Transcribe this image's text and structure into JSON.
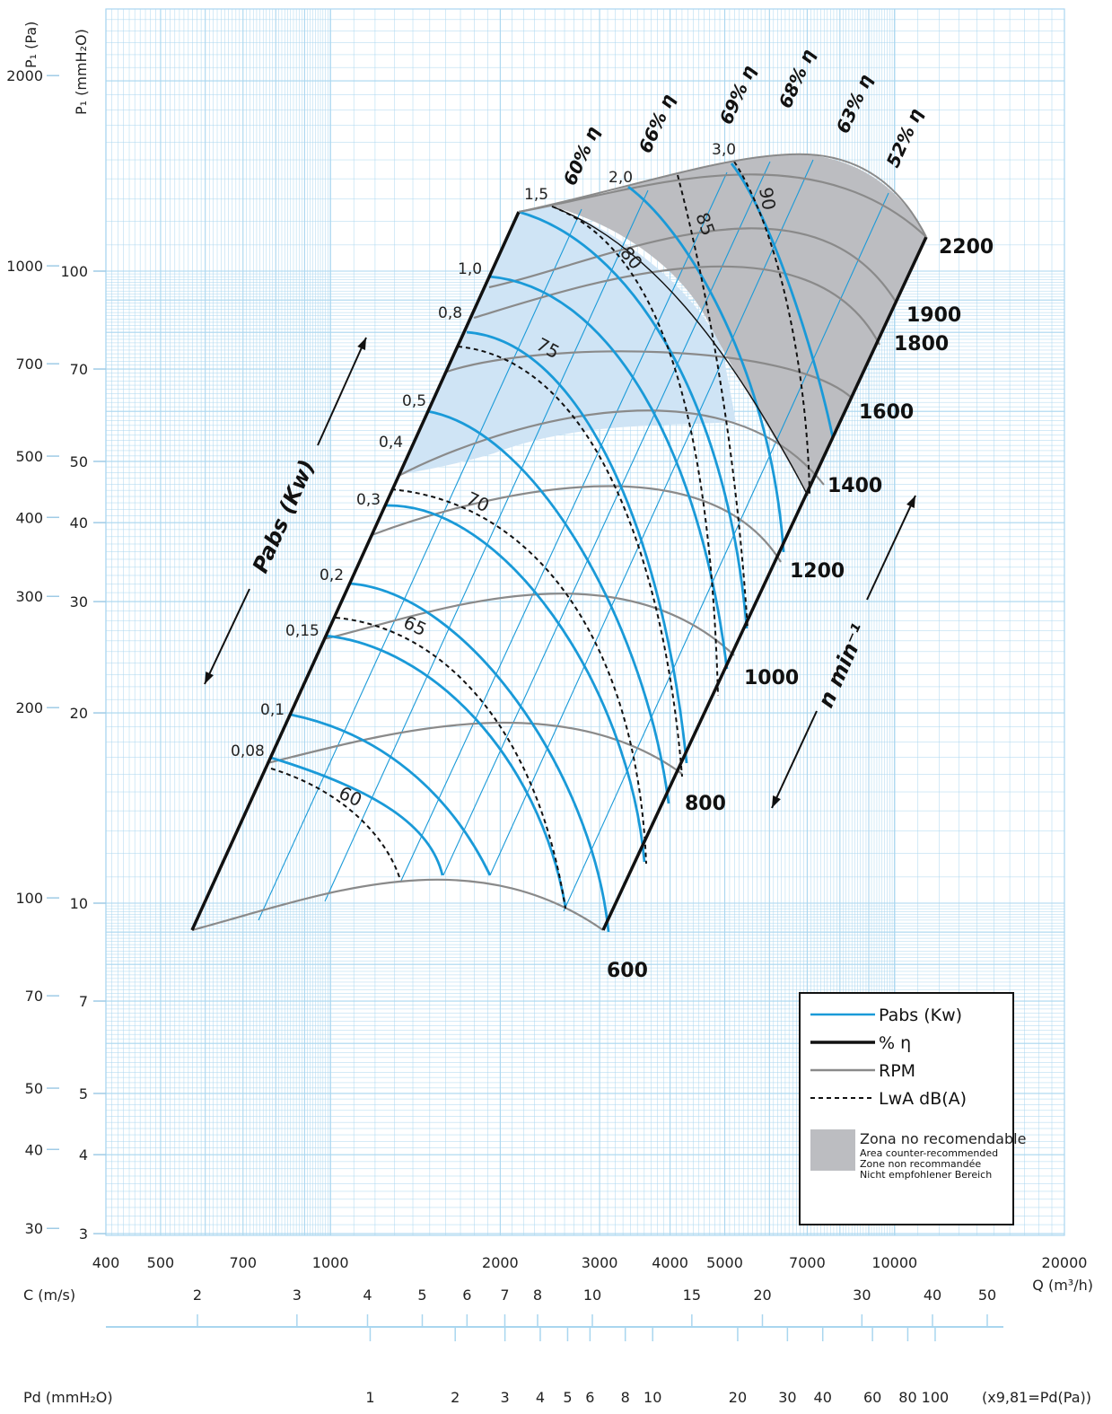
{
  "chart_data": {
    "type": "line",
    "x_axis": {
      "label": "Q (m³/h)",
      "scale": "log",
      "range": [
        400,
        20000
      ],
      "ticks": [
        "400",
        "500",
        "700",
        "1000",
        "2000",
        "3000",
        "4000",
        "5000",
        "7000",
        "10000",
        "20000"
      ]
    },
    "y_axis_pa": {
      "label": "P₁ (Pa)",
      "scale": "log",
      "ticks": [
        "2000",
        "1000",
        "700",
        "500",
        "400",
        "300",
        "200",
        "100",
        "70",
        "50",
        "40",
        "30"
      ]
    },
    "y_axis_mm": {
      "label": "P₁ (mmH₂O)",
      "scale": "log",
      "ticks": [
        "100",
        "70",
        "50",
        "40",
        "30",
        "20",
        "10",
        "7",
        "5",
        "4",
        "3"
      ]
    },
    "rpm_curves": {
      "name": "RPM",
      "labels": [
        "600",
        "800",
        "1000",
        "1200",
        "1400",
        "1600",
        "1800",
        "1900",
        "2200"
      ]
    },
    "power_lines": {
      "name": "Pabs (Kw)",
      "labels": [
        "0,08",
        "0,1",
        "0,15",
        "0,2",
        "0,3",
        "0,4",
        "0,5",
        "0,8",
        "1,0",
        "1,5",
        "2,0",
        "3,0"
      ]
    },
    "efficiency_lines": {
      "name": "% η",
      "labels": [
        "60% η",
        "66% η",
        "69% η",
        "68% η",
        "63% η",
        "52% η"
      ]
    },
    "sound_lines": {
      "name": "LwA dB(A)",
      "labels": [
        "60",
        "65",
        "70",
        "75",
        "80",
        "85",
        "90"
      ]
    },
    "axis_annotations": {
      "power_arrow": "Pabs (Kw)",
      "speed_arrow": "n  min⁻¹"
    },
    "legend": {
      "position": "bottom-right",
      "items": [
        "Pabs (Kw)",
        "% η",
        "RPM",
        "LwA dB(A)"
      ],
      "zone_title": "Zona no recomendable",
      "zone_lines": [
        "Area counter-recommended",
        "Zone non recommandée",
        "Nicht empfohlener Bereich"
      ]
    },
    "velocity_scale": {
      "label": "C (m/s)",
      "ticks": [
        "2",
        "3",
        "4",
        "5",
        "6",
        "7",
        "8",
        "10",
        "15",
        "20",
        "30",
        "40",
        "50"
      ]
    },
    "dynamic_pressure_scale": {
      "label": "Pd (mmH₂O)",
      "ticks": [
        "1",
        "2",
        "3",
        "4",
        "5",
        "6",
        "8",
        "10",
        "20",
        "30",
        "40",
        "60",
        "80",
        "100"
      ],
      "note": "(x9,81=Pd(Pa))"
    },
    "colors": {
      "power": "#1a9ad8",
      "rpm": "#8a8a8a",
      "zone": "#bcbdc1",
      "grid": "#a9d6ef",
      "fill": "#cfe4f5"
    }
  }
}
